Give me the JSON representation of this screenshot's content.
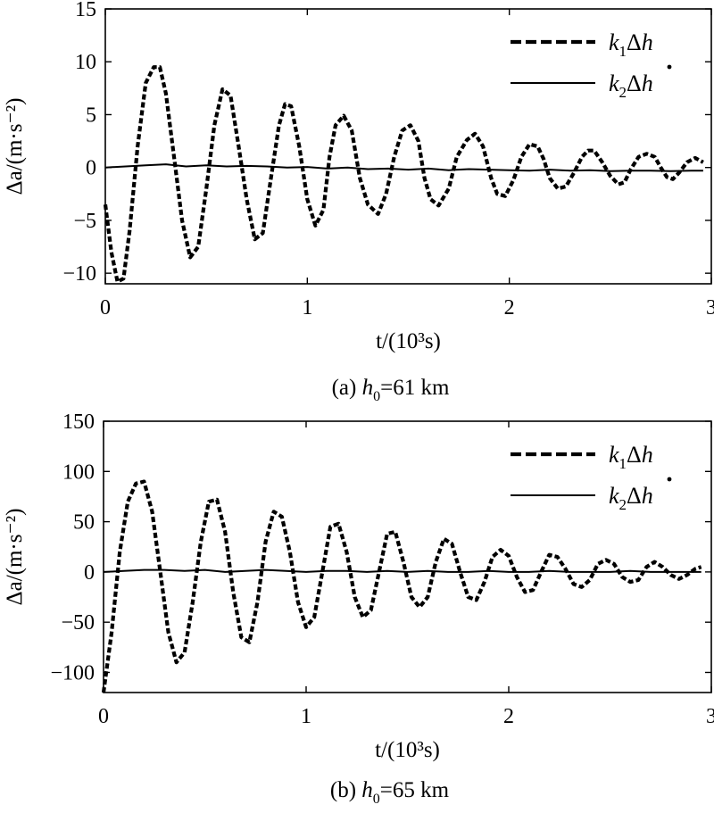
{
  "chart_data": [
    {
      "type": "line",
      "panel_label": "(a) ",
      "caption_var": "h",
      "caption_sub": "0",
      "caption_rest": "=61 km",
      "ylabel": "Δa/(m·s⁻²)",
      "xlabel": "t/(10³s)",
      "xlim": [
        0,
        3
      ],
      "ylim": [
        -11,
        15
      ],
      "xticks": [
        0,
        1,
        2,
        3
      ],
      "yticks": [
        -10,
        -5,
        0,
        5,
        10,
        15
      ],
      "xtick_labels": [
        "0",
        "1",
        "2",
        "3"
      ],
      "ytick_labels": [
        "−10",
        "−5",
        "0",
        "5",
        "10",
        "15"
      ],
      "grid": false,
      "legend_position": "top-right",
      "series": [
        {
          "name_parts": [
            "k",
            "1",
            "Δh"
          ],
          "style": "dashed",
          "x": [
            0,
            0.03,
            0.06,
            0.09,
            0.12,
            0.16,
            0.2,
            0.24,
            0.27,
            0.3,
            0.34,
            0.38,
            0.42,
            0.46,
            0.5,
            0.54,
            0.58,
            0.62,
            0.66,
            0.7,
            0.74,
            0.78,
            0.82,
            0.86,
            0.89,
            0.92,
            0.96,
            1.0,
            1.04,
            1.08,
            1.11,
            1.14,
            1.18,
            1.22,
            1.26,
            1.3,
            1.35,
            1.39,
            1.43,
            1.47,
            1.51,
            1.55,
            1.58,
            1.61,
            1.65,
            1.7,
            1.74,
            1.79,
            1.83,
            1.87,
            1.91,
            1.94,
            1.98,
            2.02,
            2.06,
            2.1,
            2.14,
            2.17,
            2.2,
            2.24,
            2.28,
            2.32,
            2.36,
            2.39,
            2.42,
            2.46,
            2.5,
            2.54,
            2.57,
            2.6,
            2.64,
            2.68,
            2.72,
            2.75,
            2.78,
            2.81,
            2.84,
            2.88,
            2.92,
            2.96
          ],
          "y": [
            -3.5,
            -8,
            -10.8,
            -10.5,
            -6,
            2,
            8,
            9.5,
            9.5,
            7,
            1,
            -5,
            -8.5,
            -7.5,
            -2,
            4,
            7.4,
            6.8,
            2,
            -3,
            -6.8,
            -6.2,
            -1,
            4,
            6,
            5.8,
            2,
            -3,
            -5.5,
            -4,
            1,
            4,
            4.9,
            3.5,
            -1,
            -3.5,
            -4.4,
            -2.5,
            1,
            3.5,
            4,
            2.5,
            -1,
            -3,
            -3.6,
            -2,
            1,
            2.6,
            3.2,
            2,
            -1,
            -2.5,
            -2.7,
            -1.2,
            1,
            2.2,
            2,
            0.8,
            -1,
            -2,
            -1.8,
            -0.5,
            1,
            1.6,
            1.6,
            0.5,
            -0.8,
            -1.6,
            -1.4,
            -0.2,
            1,
            1.3,
            1,
            0,
            -0.9,
            -1.1,
            -0.5,
            0.5,
            0.9,
            0.5
          ]
        },
        {
          "name_parts": [
            "k",
            "2",
            "Δh"
          ],
          "style": "solid",
          "x": [
            0,
            0.1,
            0.2,
            0.3,
            0.4,
            0.5,
            0.6,
            0.7,
            0.8,
            0.9,
            1.0,
            1.1,
            1.2,
            1.3,
            1.4,
            1.5,
            1.6,
            1.7,
            1.8,
            1.9,
            2.0,
            2.1,
            2.2,
            2.3,
            2.4,
            2.5,
            2.6,
            2.7,
            2.8,
            2.9,
            2.96
          ],
          "y": [
            0,
            0.1,
            0.2,
            0.3,
            0.1,
            0.2,
            0.1,
            0.15,
            0.1,
            0,
            0.05,
            -0.1,
            0,
            -0.15,
            -0.1,
            -0.2,
            -0.1,
            -0.25,
            -0.15,
            -0.2,
            -0.25,
            -0.3,
            -0.2,
            -0.3,
            -0.25,
            -0.35,
            -0.3,
            -0.3,
            -0.35,
            -0.3,
            -0.3
          ]
        }
      ]
    },
    {
      "type": "line",
      "panel_label": "(b) ",
      "caption_var": "h",
      "caption_sub": "0",
      "caption_rest": "=65 km",
      "ylabel": "Δa/(m·s⁻²)",
      "xlabel": "t/(10³s)",
      "xlim": [
        0,
        3
      ],
      "ylim": [
        -120,
        150
      ],
      "xticks": [
        0,
        1,
        2,
        3
      ],
      "yticks": [
        -100,
        -50,
        0,
        50,
        100,
        150
      ],
      "xtick_labels": [
        "0",
        "1",
        "2",
        "3"
      ],
      "ytick_labels": [
        "−100",
        "−50",
        "0",
        "50",
        "100",
        "150"
      ],
      "grid": false,
      "legend_position": "top-right",
      "series": [
        {
          "name_parts": [
            "k",
            "1",
            "Δh"
          ],
          "style": "dashed",
          "x": [
            0,
            0.04,
            0.08,
            0.12,
            0.16,
            0.2,
            0.24,
            0.28,
            0.32,
            0.36,
            0.4,
            0.44,
            0.48,
            0.52,
            0.56,
            0.6,
            0.64,
            0.68,
            0.72,
            0.76,
            0.8,
            0.84,
            0.88,
            0.92,
            0.96,
            1.0,
            1.04,
            1.08,
            1.12,
            1.16,
            1.2,
            1.24,
            1.28,
            1.32,
            1.36,
            1.4,
            1.44,
            1.48,
            1.52,
            1.56,
            1.6,
            1.64,
            1.68,
            1.72,
            1.76,
            1.8,
            1.84,
            1.88,
            1.92,
            1.96,
            2.0,
            2.04,
            2.08,
            2.12,
            2.16,
            2.2,
            2.24,
            2.28,
            2.32,
            2.36,
            2.4,
            2.44,
            2.48,
            2.52,
            2.56,
            2.6,
            2.64,
            2.68,
            2.72,
            2.76,
            2.8,
            2.84,
            2.88,
            2.92,
            2.95
          ],
          "y": [
            -120,
            -60,
            20,
            70,
            88,
            90,
            60,
            0,
            -60,
            -90,
            -80,
            -30,
            30,
            70,
            72,
            40,
            -20,
            -65,
            -70,
            -30,
            30,
            60,
            55,
            20,
            -30,
            -55,
            -45,
            0,
            45,
            48,
            20,
            -25,
            -45,
            -38,
            0,
            38,
            40,
            10,
            -25,
            -35,
            -25,
            10,
            33,
            28,
            0,
            -25,
            -28,
            -10,
            15,
            22,
            16,
            -5,
            -20,
            -18,
            0,
            17,
            15,
            3,
            -12,
            -15,
            -8,
            8,
            12,
            8,
            -5,
            -10,
            -8,
            5,
            10,
            5,
            -3,
            -7,
            -3,
            3,
            5
          ]
        },
        {
          "name_parts": [
            "k",
            "2",
            "Δh"
          ],
          "style": "solid",
          "x": [
            0,
            0.1,
            0.2,
            0.3,
            0.4,
            0.5,
            0.6,
            0.7,
            0.8,
            0.9,
            1.0,
            1.1,
            1.2,
            1.3,
            1.4,
            1.5,
            1.6,
            1.7,
            1.8,
            1.9,
            2.0,
            2.1,
            2.2,
            2.3,
            2.4,
            2.5,
            2.6,
            2.7,
            2.8,
            2.9,
            2.95
          ],
          "y": [
            0,
            1,
            2,
            2,
            1,
            2,
            0,
            1,
            2,
            1,
            0,
            1,
            1,
            0,
            1,
            0,
            1,
            0,
            0,
            1,
            0,
            0,
            1,
            0,
            0,
            0,
            1,
            0,
            0,
            0,
            0
          ]
        }
      ]
    }
  ]
}
